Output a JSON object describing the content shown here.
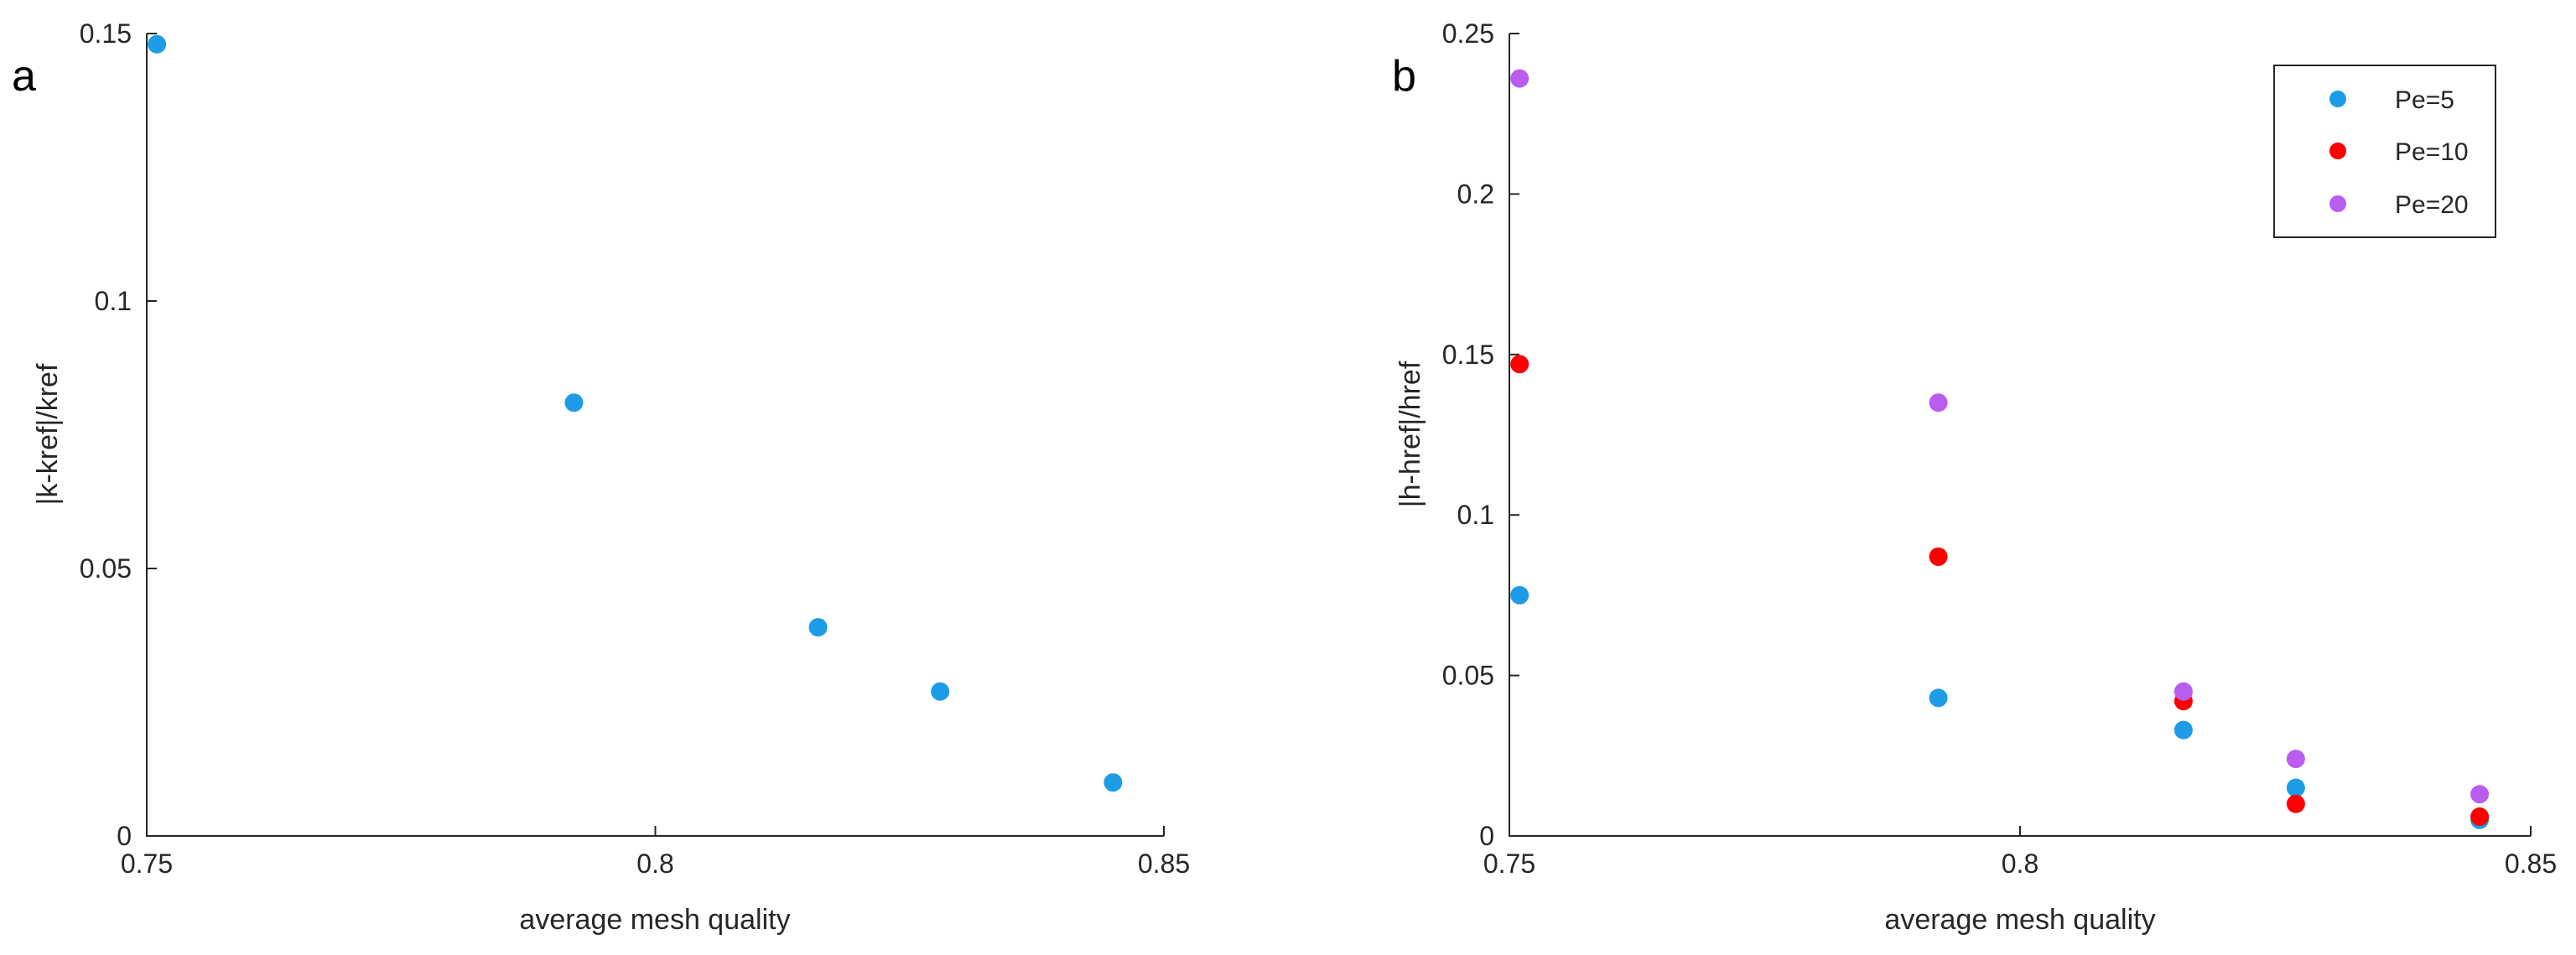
{
  "chart_data": [
    {
      "type": "scatter",
      "panel_label": "a",
      "xlabel": "average mesh quality",
      "ylabel": "|k-kref|/kref",
      "xlim": [
        0.75,
        0.85
      ],
      "ylim": [
        0,
        0.15
      ],
      "xticks": [
        "0.75",
        "0.8",
        "0.85"
      ],
      "yticks": [
        "0",
        "0.05",
        "0.1",
        "0.15"
      ],
      "grid": false,
      "legend": null,
      "series": [
        {
          "color": "#1e9be6",
          "x": [
            0.751,
            0.792,
            0.816,
            0.828,
            0.845
          ],
          "y": [
            0.148,
            0.081,
            0.039,
            0.027,
            0.01
          ]
        }
      ]
    },
    {
      "type": "scatter",
      "panel_label": "b",
      "xlabel": "average mesh quality",
      "ylabel": "|h-href|/href",
      "xlim": [
        0.75,
        0.85
      ],
      "ylim": [
        0,
        0.25
      ],
      "xticks": [
        "0.75",
        "0.8",
        "0.85"
      ],
      "yticks": [
        "0",
        "0.05",
        "0.1",
        "0.15",
        "0.2",
        "0.25"
      ],
      "grid": false,
      "legend": "top-right",
      "series": [
        {
          "name": "Pe=5",
          "color": "#1e9be6",
          "x": [
            0.751,
            0.792,
            0.816,
            0.827,
            0.845
          ],
          "y": [
            0.075,
            0.043,
            0.033,
            0.015,
            0.005
          ]
        },
        {
          "name": "Pe=10",
          "color": "#ff0000",
          "x": [
            0.751,
            0.792,
            0.816,
            0.827,
            0.845
          ],
          "y": [
            0.147,
            0.087,
            0.042,
            0.01,
            0.006
          ]
        },
        {
          "name": "Pe=20",
          "color": "#b95cf0",
          "x": [
            0.751,
            0.792,
            0.816,
            0.827,
            0.845
          ],
          "y": [
            0.236,
            0.135,
            0.045,
            0.024,
            0.013
          ]
        }
      ]
    }
  ]
}
